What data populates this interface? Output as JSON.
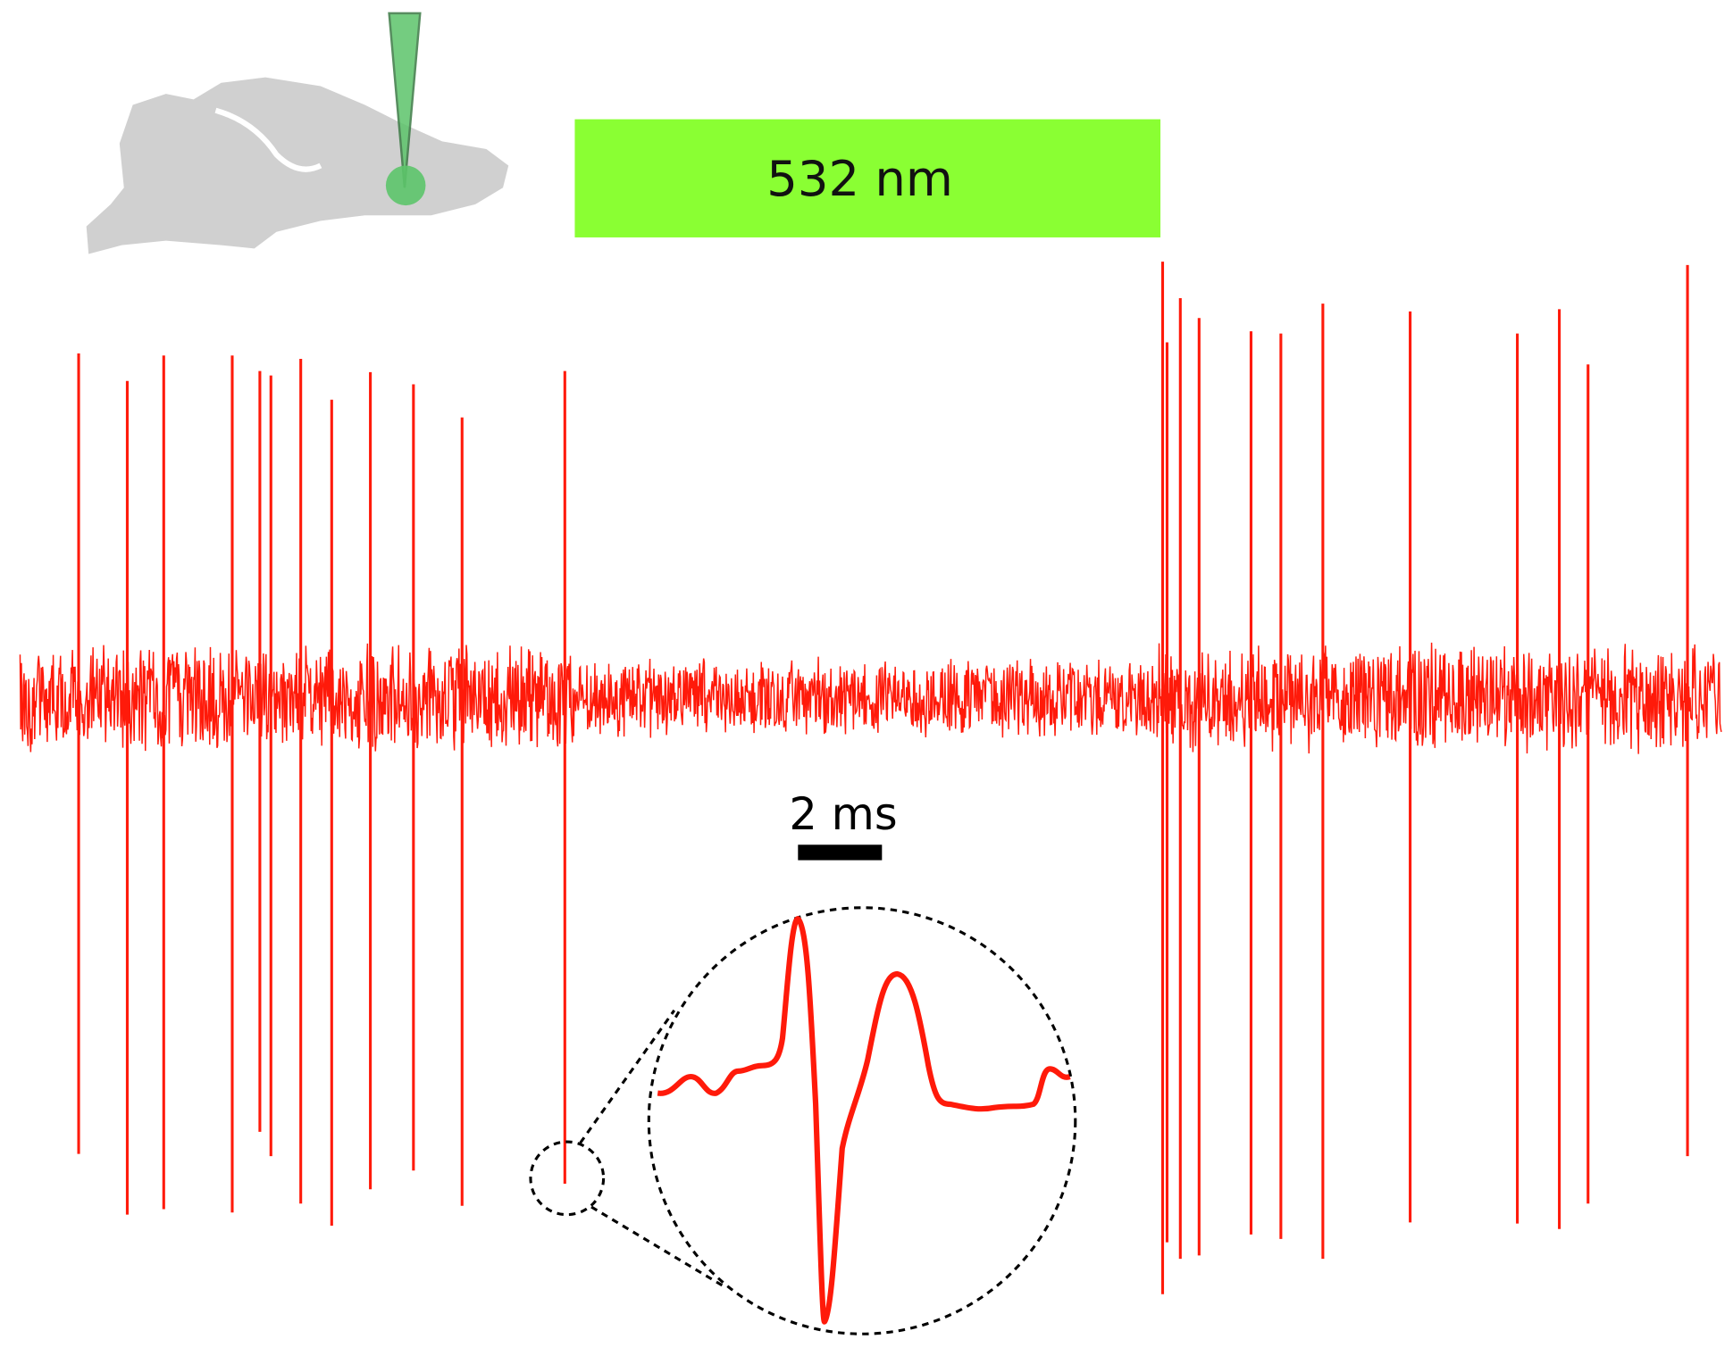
{
  "stimulus": {
    "label": "532 nm"
  },
  "scale_bar": {
    "label": "2 ms"
  }
}
